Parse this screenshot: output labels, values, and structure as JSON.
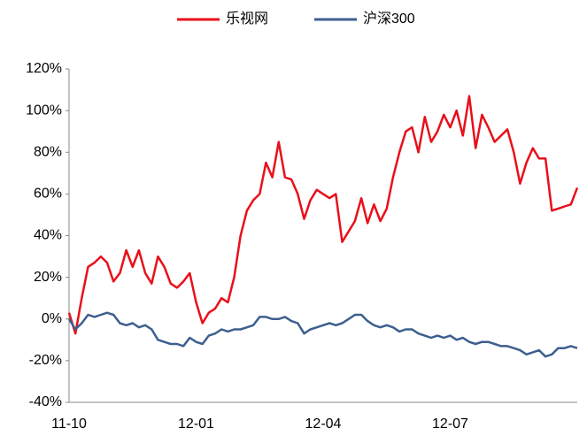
{
  "chart_data": {
    "type": "line",
    "categories": [
      "11-10",
      null,
      null,
      null,
      null,
      null,
      null,
      null,
      null,
      null,
      null,
      null,
      null,
      null,
      null,
      null,
      null,
      null,
      null,
      null,
      "12-01",
      null,
      null,
      null,
      null,
      null,
      null,
      null,
      null,
      null,
      null,
      null,
      null,
      null,
      null,
      null,
      null,
      null,
      null,
      null,
      "12-04",
      null,
      null,
      null,
      null,
      null,
      null,
      null,
      null,
      null,
      null,
      null,
      null,
      null,
      null,
      null,
      null,
      null,
      null,
      null,
      "12-07",
      null,
      null,
      null,
      null,
      null,
      null,
      null,
      null,
      null,
      null,
      null,
      null,
      null,
      null,
      null,
      null,
      null,
      null,
      null,
      null
    ],
    "series": [
      {
        "name": "乐视网",
        "color": "#e8101a",
        "values": [
          3,
          -7,
          10,
          25,
          27,
          30,
          27,
          18,
          22,
          33,
          25,
          33,
          22,
          17,
          30,
          25,
          17,
          15,
          18,
          22,
          8,
          -2,
          3,
          5,
          10,
          8,
          20,
          40,
          52,
          57,
          60,
          75,
          68,
          85,
          68,
          67,
          60,
          48,
          57,
          62,
          60,
          58,
          60,
          37,
          42,
          47,
          58,
          46,
          55,
          47,
          53,
          68,
          80,
          90,
          92,
          80,
          97,
          85,
          90,
          98,
          92,
          100,
          88,
          107,
          82,
          98,
          92,
          85,
          88,
          91,
          80,
          65,
          75,
          82,
          77,
          77,
          52,
          53,
          54,
          55,
          63
        ]
      },
      {
        "name": "沪深300",
        "color": "#3d5f8f",
        "values": [
          0,
          -5,
          -2,
          2,
          1,
          2,
          3,
          2,
          -2,
          -3,
          -2,
          -4,
          -3,
          -5,
          -10,
          -11,
          -12,
          -12,
          -13,
          -9,
          -11,
          -12,
          -8,
          -7,
          -5,
          -6,
          -5,
          -5,
          -4,
          -3,
          1,
          1,
          0,
          0,
          1,
          -1,
          -2,
          -7,
          -5,
          -4,
          -3,
          -2,
          -3,
          -2,
          0,
          2,
          2,
          -1,
          -3,
          -4,
          -3,
          -4,
          -6,
          -5,
          -5,
          -7,
          -8,
          -9,
          -8,
          -9,
          -8,
          -10,
          -9,
          -11,
          -12,
          -11,
          -11,
          -12,
          -13,
          -13,
          -14,
          -15,
          -17,
          -16,
          -15,
          -18,
          -17,
          -14,
          -14,
          -13,
          -14
        ]
      }
    ],
    "ylim": [
      -40,
      120
    ],
    "yticks": [
      {
        "value": -40,
        "label": "-40%"
      },
      {
        "value": -20,
        "label": "-20%"
      },
      {
        "value": 0,
        "label": "0%"
      },
      {
        "value": 20,
        "label": "20%"
      },
      {
        "value": 40,
        "label": "40%"
      },
      {
        "value": 60,
        "label": "60%"
      },
      {
        "value": 80,
        "label": "80%"
      },
      {
        "value": 100,
        "label": "100%"
      },
      {
        "value": 120,
        "label": "120%"
      }
    ],
    "legend": "top"
  }
}
